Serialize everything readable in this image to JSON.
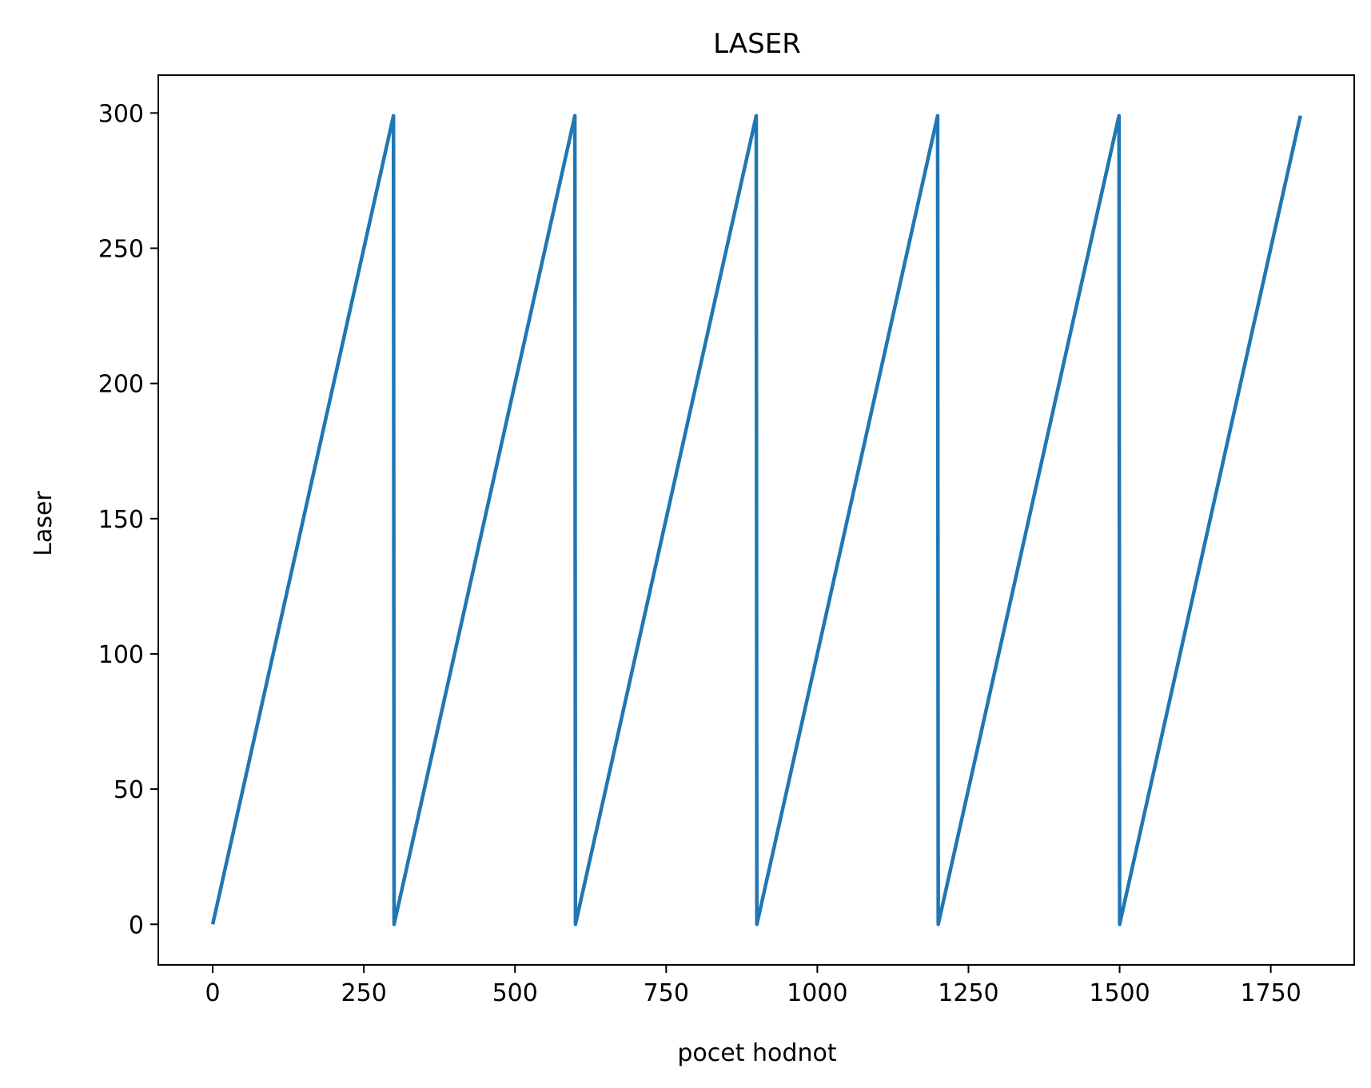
{
  "chart_data": {
    "type": "line",
    "title": "LASER",
    "xlabel": "pocet hodnot",
    "ylabel": "Laser",
    "xlim": [
      -90,
      1888
    ],
    "ylim": [
      -15,
      314
    ],
    "xticks": [
      0,
      250,
      500,
      750,
      1000,
      1250,
      1500,
      1750
    ],
    "xtick_labels": [
      "0",
      "250",
      "500",
      "750",
      "1000",
      "1250",
      "1500",
      "1750"
    ],
    "yticks": [
      0,
      50,
      100,
      150,
      200,
      250,
      300
    ],
    "ytick_labels": [
      "0",
      "50",
      "100",
      "150",
      "200",
      "250",
      "300"
    ],
    "grid": false,
    "legend": "none",
    "series": [
      {
        "color": "#1f77b4",
        "x": [
          0,
          299,
          300,
          599,
          600,
          899,
          900,
          1199,
          1200,
          1499,
          1500,
          1799
        ],
        "y": [
          0,
          299,
          0,
          299,
          0,
          299,
          0,
          299,
          0,
          299,
          0,
          299
        ]
      }
    ]
  }
}
